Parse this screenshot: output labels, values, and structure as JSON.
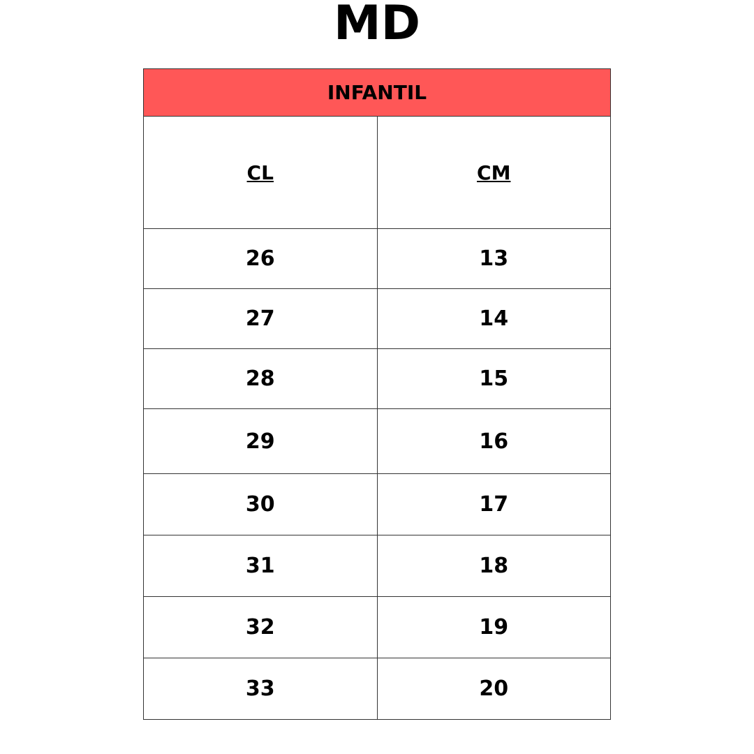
{
  "title": "MD",
  "section": "INFANTIL",
  "header_color": "#ff5757",
  "columns": [
    "CL",
    "CM"
  ],
  "rows": [
    [
      "26",
      "13"
    ],
    [
      "27",
      "14"
    ],
    [
      "28",
      "15"
    ],
    [
      "29",
      "16"
    ],
    [
      "30",
      "17"
    ],
    [
      "31",
      "18"
    ],
    [
      "32",
      "19"
    ],
    [
      "33",
      "20"
    ]
  ]
}
